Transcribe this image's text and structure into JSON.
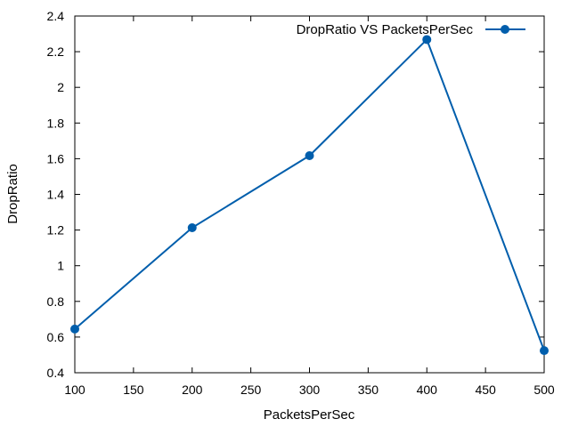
{
  "chart_data": {
    "type": "line",
    "xlabel": "PacketsPerSec",
    "ylabel": "DropRatio",
    "xlim": [
      100,
      500
    ],
    "ylim": [
      0.4,
      2.4
    ],
    "xticks": [
      100,
      150,
      200,
      250,
      300,
      350,
      400,
      450,
      500
    ],
    "yticks": [
      0.4,
      0.6,
      0.8,
      1,
      1.2,
      1.4,
      1.6,
      1.8,
      2,
      2.2,
      2.4
    ],
    "xtick_labels": [
      "100",
      "150",
      "200",
      "250",
      "300",
      "350",
      "400",
      "450",
      "500"
    ],
    "ytick_labels": [
      "0.4",
      "0.6",
      "0.8",
      "1",
      "1.2",
      "1.4",
      "1.6",
      "1.8",
      "2",
      "2.2",
      "2.4"
    ],
    "grid": false,
    "legend_position": "top-right",
    "series": [
      {
        "name": "DropRatio VS PacketsPerSec",
        "color": "#005eac",
        "marker": "circle",
        "x": [
          100,
          200,
          300,
          400,
          500
        ],
        "y": [
          0.645,
          1.213,
          1.617,
          2.268,
          0.524
        ]
      }
    ]
  }
}
